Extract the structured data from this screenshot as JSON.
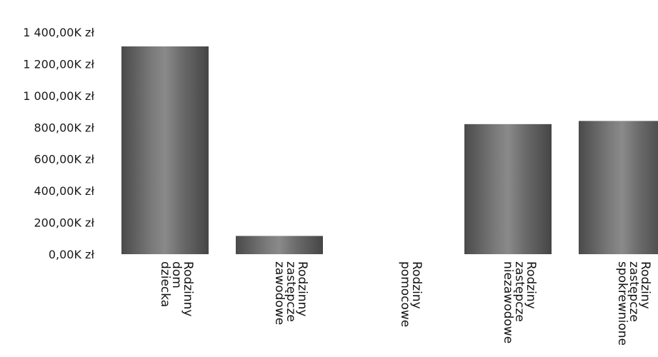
{
  "chart_data": {
    "type": "bar",
    "title": "",
    "xlabel": "",
    "ylabel": "",
    "ylim": [
      0,
      1400
    ],
    "yticks": [
      0,
      200,
      400,
      600,
      800,
      1000,
      1200,
      1400
    ],
    "ytick_labels": [
      "0,00K zł",
      "200,00K zł",
      "400,00K zł",
      "600,00K zł",
      "800,00K zł",
      "1 000,00K zł",
      "1 200,00K zł",
      "1 400,00K zł"
    ],
    "categories": [
      [
        "Rodzinny",
        "dom",
        "dziecka"
      ],
      [
        "Rodzinny",
        "zastępcze",
        "zawodowe"
      ],
      [
        "Rodziny",
        "pomocowe"
      ],
      [
        "Rodziny",
        "zastępcze",
        "niezawodowe"
      ],
      [
        "Rodziny",
        "zastępcze",
        "spokrewnione"
      ]
    ],
    "values": [
      1310,
      115,
      0,
      820,
      840
    ],
    "grid": false,
    "legend": "none",
    "bar_color": "#6e6e6e"
  }
}
